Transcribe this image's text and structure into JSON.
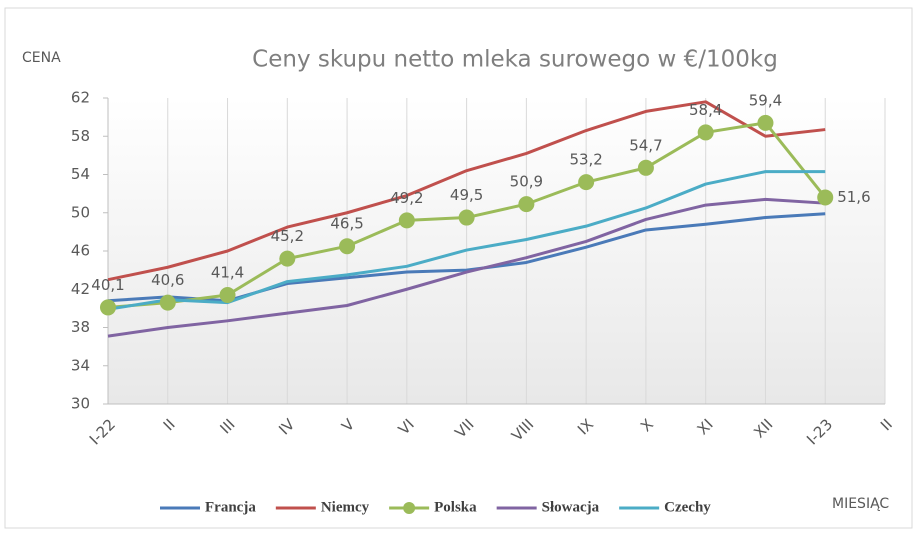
{
  "chart_data": {
    "type": "line",
    "title": "Ceny skupu netto mleka surowego  w €/100kg",
    "y_label": "CENA",
    "x_label": "MIESIĄC",
    "categories": [
      "I-22",
      "II",
      "III",
      "IV",
      "V",
      "VI",
      "VII",
      "VIII",
      "IX",
      "X",
      "XI",
      "XII",
      "I-23",
      "II"
    ],
    "series": [
      {
        "name": "Francja",
        "color": "#4a7ab8",
        "values": [
          40.8,
          41.2,
          40.8,
          42.6,
          43.2,
          43.8,
          44.0,
          44.8,
          46.4,
          48.2,
          48.8,
          49.5,
          49.9,
          null
        ]
      },
      {
        "name": "Niemcy",
        "color": "#c0504d",
        "values": [
          43.0,
          44.3,
          46.0,
          48.5,
          50.0,
          51.8,
          54.4,
          56.2,
          58.6,
          60.6,
          61.6,
          58.0,
          58.7,
          null
        ]
      },
      {
        "name": "Polska",
        "color": "#9bbb59",
        "markers": true,
        "values": [
          40.1,
          40.6,
          41.4,
          45.2,
          46.5,
          49.2,
          49.5,
          50.9,
          53.2,
          54.7,
          58.4,
          59.4,
          51.6,
          null
        ],
        "value_labels": [
          "40,1",
          "40,6",
          "41,4",
          "45,2",
          "46,5",
          "49,2",
          "49,5",
          "50,9",
          "53,2",
          "54,7",
          "58,4",
          "59,4",
          "51,6",
          null
        ]
      },
      {
        "name": "Słowacja",
        "color": "#8064a2",
        "values": [
          37.1,
          38.0,
          38.7,
          39.5,
          40.3,
          42.0,
          43.8,
          45.3,
          47.0,
          49.3,
          50.8,
          51.4,
          51.0,
          null
        ]
      },
      {
        "name": "Czechy",
        "color": "#4bacc6",
        "values": [
          39.9,
          40.9,
          40.6,
          42.8,
          43.5,
          44.4,
          46.1,
          47.2,
          48.6,
          50.5,
          53.0,
          54.3,
          54.3,
          null
        ]
      }
    ],
    "ylim": [
      30,
      62
    ],
    "yticks": [
      30,
      34,
      38,
      42,
      46,
      50,
      54,
      58,
      62
    ],
    "grid": "x",
    "legend": "bottom"
  }
}
